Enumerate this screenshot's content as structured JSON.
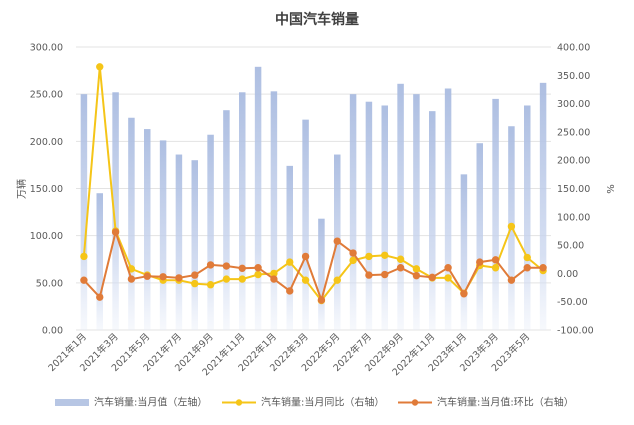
{
  "chart_data": {
    "type": "bar",
    "title": "中国汽车销量",
    "ylabel_left": "万辆",
    "ylabel_right": "%",
    "ylim_left": [
      0,
      300
    ],
    "ylim_right": [
      -100,
      400
    ],
    "yticks_left": [
      "0.00",
      "50.00",
      "100.00",
      "150.00",
      "200.00",
      "250.00",
      "300.00"
    ],
    "yticks_right": [
      "-100.00",
      "-50.00",
      "0.00",
      "50.00",
      "100.00",
      "150.00",
      "200.00",
      "250.00",
      "300.00",
      "350.00",
      "400.00"
    ],
    "categories": [
      "2021年1月",
      "2021年2月",
      "2021年3月",
      "2021年4月",
      "2021年5月",
      "2021年6月",
      "2021年7月",
      "2021年8月",
      "2021年9月",
      "2021年10月",
      "2021年11月",
      "2021年12月",
      "2022年1月",
      "2022年2月",
      "2022年3月",
      "2022年4月",
      "2022年5月",
      "2022年6月",
      "2022年7月",
      "2022年8月",
      "2022年9月",
      "2022年10月",
      "2022年11月",
      "2022年12月",
      "2023年1月",
      "2023年2月",
      "2023年3月",
      "2023年4月",
      "2023年5月",
      "2023年6月"
    ],
    "x_tick_labels": [
      "2021年1月",
      "2021年3月",
      "2021年5月",
      "2021年7月",
      "2021年9月",
      "2021年11月",
      "2022年1月",
      "2022年3月",
      "2022年5月",
      "2022年7月",
      "2022年9月",
      "2022年11月",
      "2023年1月",
      "2023年3月",
      "2023年5月"
    ],
    "series": [
      {
        "name": "汽车销量:当月值（左轴）",
        "type": "bar",
        "axis": "left",
        "color": "#b7c6e4",
        "values": [
          250,
          145,
          252,
          225,
          213,
          201,
          186,
          180,
          207,
          233,
          252,
          279,
          253,
          174,
          223,
          118,
          186,
          250,
          242,
          238,
          261,
          250,
          232,
          256,
          165,
          198,
          245,
          216,
          238,
          262
        ]
      },
      {
        "name": "汽车销量:当月同比（右轴）",
        "type": "line",
        "axis": "right",
        "color": "#f5c518",
        "values": [
          30,
          365,
          75,
          8,
          -3,
          -12,
          -12,
          -18,
          -20,
          -10,
          -10,
          -2,
          0,
          20,
          -12,
          -48,
          -12,
          23,
          30,
          32,
          25,
          8,
          -8,
          -8,
          -35,
          14,
          10,
          83,
          28,
          5
        ]
      },
      {
        "name": "汽车销量:当月值:环比（右轴）",
        "type": "line",
        "axis": "right",
        "color": "#e07b39",
        "values": [
          -12,
          -42,
          73,
          -10,
          -5,
          -6,
          -8,
          -3,
          15,
          13,
          9,
          10,
          -10,
          -31,
          30,
          -47,
          57,
          36,
          -3,
          -2,
          10,
          -4,
          -7,
          10,
          -36,
          20,
          24,
          -12,
          10,
          10
        ]
      }
    ]
  }
}
